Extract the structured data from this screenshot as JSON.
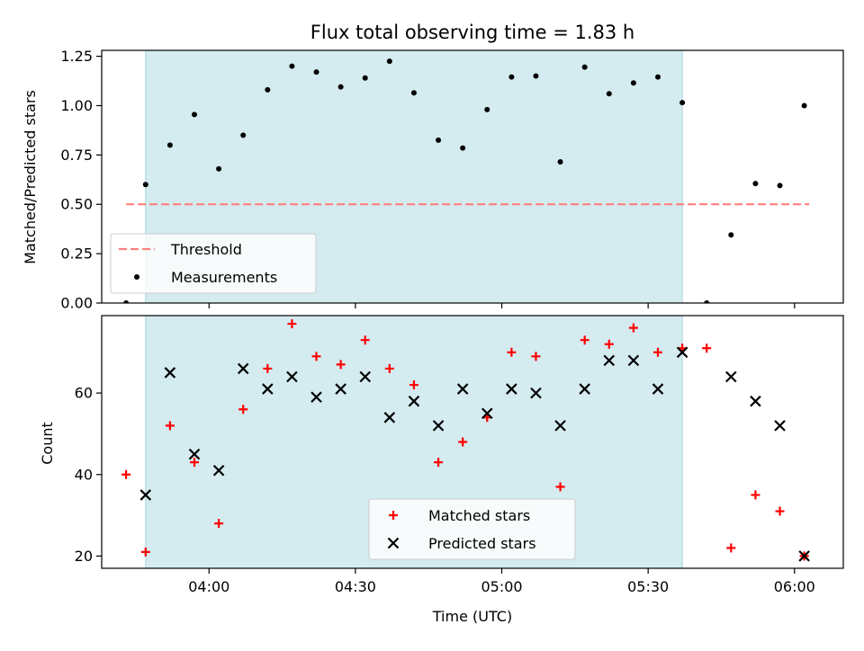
{
  "chart_data": {
    "title": "Flux total observing time = 1.83 h",
    "xlabel": "Time (UTC)",
    "x_unit": "minutes after 03:00 UTC",
    "x_ticks": [
      {
        "value": 60,
        "label": "04:00"
      },
      {
        "value": 90,
        "label": "04:30"
      },
      {
        "value": 120,
        "label": "05:00"
      },
      {
        "value": 150,
        "label": "05:30"
      },
      {
        "value": 180,
        "label": "06:00"
      }
    ],
    "xlim": [
      38,
      190
    ],
    "shaded_span": {
      "x0": 47,
      "x1": 157,
      "color": "#d4ebf0"
    },
    "panels": [
      {
        "type": "scatter",
        "ylabel": "Matched/Predicted stars",
        "ylim": [
          0,
          1.28
        ],
        "y_ticks": [
          "0.00",
          "0.25",
          "0.50",
          "0.75",
          "1.00",
          "1.25"
        ],
        "y_tick_values": [
          0,
          0.25,
          0.5,
          0.75,
          1.0,
          1.25
        ],
        "legend": {
          "placement": "lower-left",
          "entries": [
            "Threshold",
            "Measurements"
          ]
        },
        "series": [
          {
            "name": "Threshold",
            "style": "dashed-line",
            "color": "#ff7f7f",
            "points": [
              [
                43,
                0.5
              ],
              [
                183,
                0.5
              ]
            ]
          },
          {
            "name": "Measurements",
            "style": "dot",
            "color": "#000000",
            "points": [
              [
                43,
                0.0
              ],
              [
                47,
                0.6
              ],
              [
                52,
                0.8
              ],
              [
                57,
                0.955
              ],
              [
                62,
                0.68
              ],
              [
                67,
                0.85
              ],
              [
                72,
                1.08
              ],
              [
                77,
                1.2
              ],
              [
                82,
                1.17
              ],
              [
                87,
                1.095
              ],
              [
                92,
                1.14
              ],
              [
                97,
                1.225
              ],
              [
                102,
                1.065
              ],
              [
                107,
                0.825
              ],
              [
                112,
                0.785
              ],
              [
                117,
                0.98
              ],
              [
                122,
                1.145
              ],
              [
                127,
                1.15
              ],
              [
                132,
                0.715
              ],
              [
                137,
                1.195
              ],
              [
                142,
                1.06
              ],
              [
                147,
                1.115
              ],
              [
                152,
                1.145
              ],
              [
                157,
                1.015
              ],
              [
                162,
                0.0
              ],
              [
                167,
                0.345
              ],
              [
                172,
                0.605
              ],
              [
                177,
                0.595
              ],
              [
                182,
                1.0
              ]
            ]
          }
        ]
      },
      {
        "type": "scatter",
        "ylabel": "Count",
        "ylim": [
          17,
          79
        ],
        "y_ticks": [
          "20",
          "40",
          "60"
        ],
        "y_tick_values": [
          20,
          40,
          60
        ],
        "legend": {
          "placement": "lower-center",
          "entries": [
            "Matched stars",
            "Predicted stars"
          ]
        },
        "series": [
          {
            "name": "Matched stars",
            "marker": "plus",
            "color": "#ff0000",
            "points": [
              [
                43,
                40
              ],
              [
                47,
                21
              ],
              [
                52,
                52
              ],
              [
                57,
                43
              ],
              [
                62,
                28
              ],
              [
                67,
                56
              ],
              [
                72,
                66
              ],
              [
                77,
                77
              ],
              [
                82,
                69
              ],
              [
                87,
                67
              ],
              [
                92,
                73
              ],
              [
                97,
                66
              ],
              [
                102,
                62
              ],
              [
                107,
                43
              ],
              [
                112,
                48
              ],
              [
                117,
                54
              ],
              [
                122,
                70
              ],
              [
                127,
                69
              ],
              [
                132,
                37
              ],
              [
                137,
                73
              ],
              [
                142,
                72
              ],
              [
                147,
                76
              ],
              [
                152,
                70
              ],
              [
                157,
                71
              ],
              [
                162,
                71
              ],
              [
                167,
                22
              ],
              [
                172,
                35
              ],
              [
                177,
                31
              ],
              [
                182,
                20
              ]
            ]
          },
          {
            "name": "Predicted stars",
            "marker": "x",
            "color": "#000000",
            "points": [
              [
                47,
                35
              ],
              [
                52,
                65
              ],
              [
                57,
                45
              ],
              [
                62,
                41
              ],
              [
                67,
                66
              ],
              [
                72,
                61
              ],
              [
                77,
                64
              ],
              [
                82,
                59
              ],
              [
                87,
                61
              ],
              [
                92,
                64
              ],
              [
                97,
                54
              ],
              [
                102,
                58
              ],
              [
                107,
                52
              ],
              [
                112,
                61
              ],
              [
                117,
                55
              ],
              [
                122,
                61
              ],
              [
                127,
                60
              ],
              [
                132,
                52
              ],
              [
                137,
                61
              ],
              [
                142,
                68
              ],
              [
                147,
                68
              ],
              [
                152,
                61
              ],
              [
                157,
                70
              ],
              [
                167,
                64
              ],
              [
                172,
                58
              ],
              [
                177,
                52
              ],
              [
                182,
                20
              ]
            ]
          }
        ]
      }
    ]
  }
}
